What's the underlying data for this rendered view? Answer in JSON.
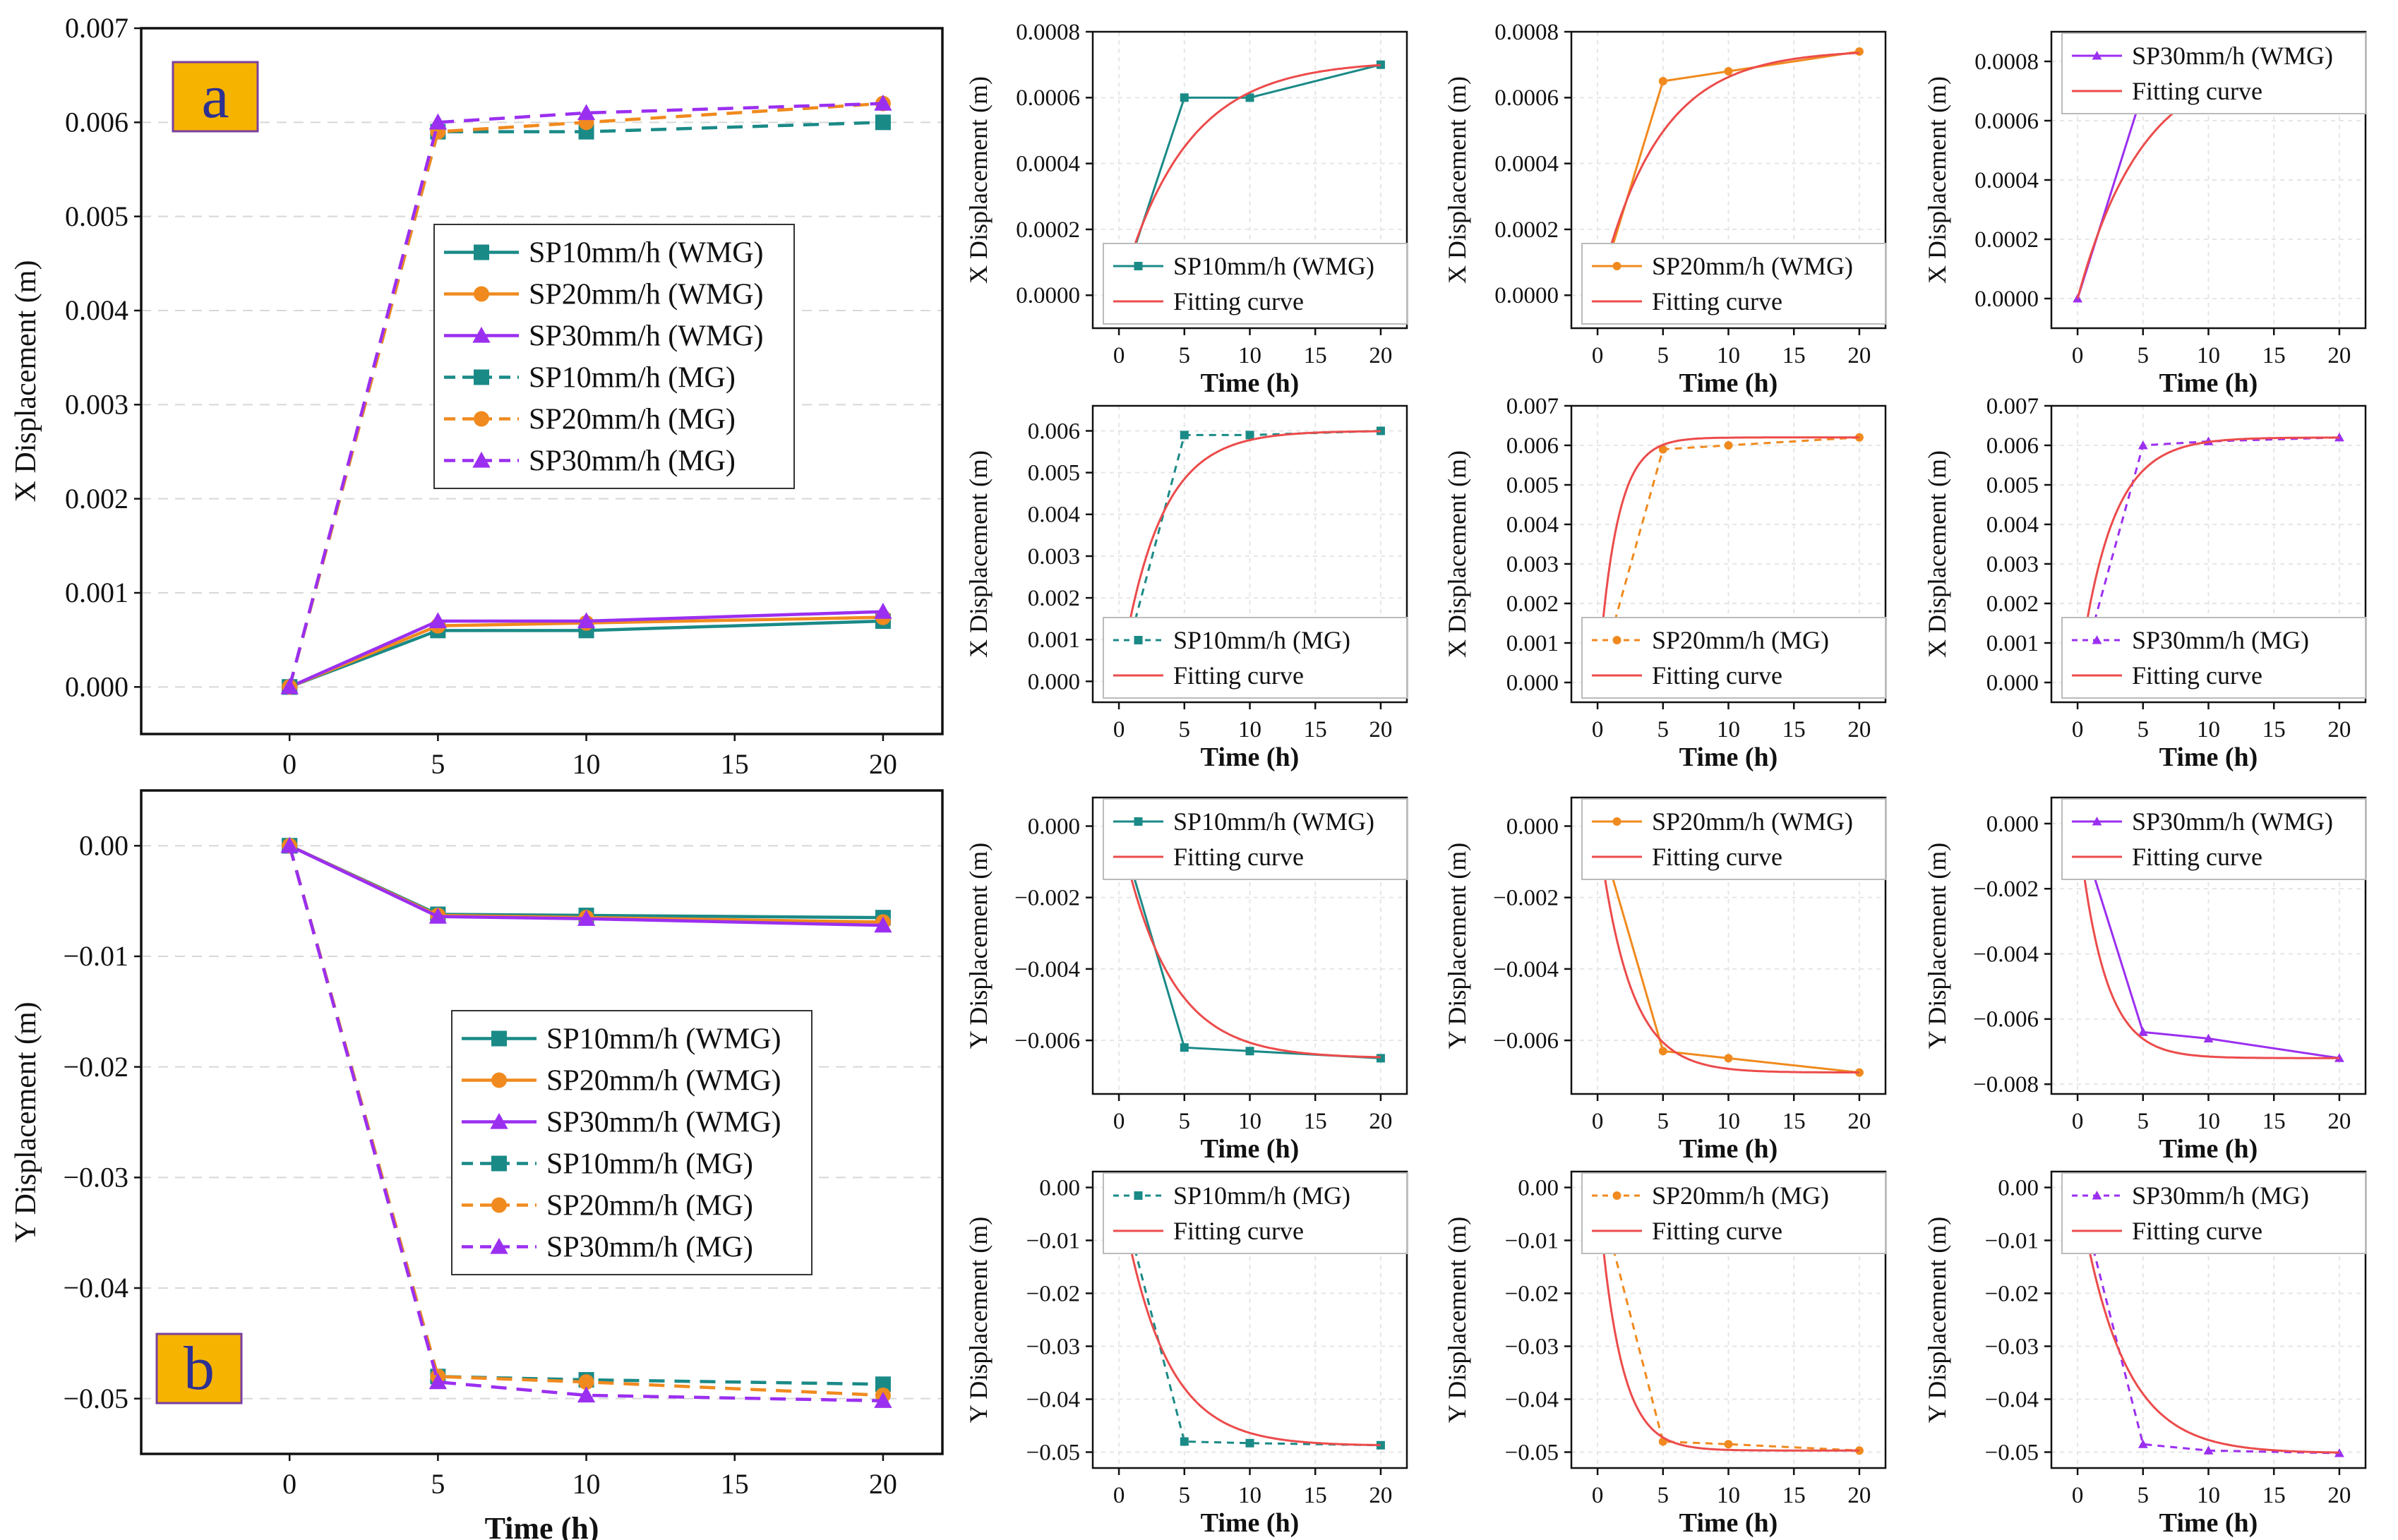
{
  "colors": {
    "teal": "#1a8a87",
    "orange": "#f08a1e",
    "purple": "#9b2ff0",
    "fit": "#ec4b4b",
    "label_box": "#f6b300",
    "label_text": "#2e3192"
  },
  "chart_data": [
    {
      "id": "a",
      "type": "line",
      "panel_label": "a",
      "xlabel": "Time (h)",
      "ylabel": "X Displacement (m)",
      "xlim": [
        -5,
        22
      ],
      "ylim": [
        -0.0005,
        0.007
      ],
      "xticks": [
        "0",
        "5",
        "10",
        "15",
        "20"
      ],
      "yticks": [
        "0.000",
        "0.001",
        "0.002",
        "0.003",
        "0.004",
        "0.005",
        "0.006",
        "0.007"
      ],
      "grid": true,
      "legend_position": "center",
      "x": [
        0,
        5,
        10,
        20
      ],
      "series": [
        {
          "name": "SP10mm/h (WMG)",
          "values": [
            0,
            0.0006,
            0.0006,
            0.0007
          ],
          "color": "teal",
          "marker": "square",
          "dash": false
        },
        {
          "name": "SP20mm/h (WMG)",
          "values": [
            0,
            0.00065,
            0.00068,
            0.00074
          ],
          "color": "orange",
          "marker": "circle",
          "dash": false
        },
        {
          "name": "SP30mm/h (WMG)",
          "values": [
            0,
            0.0007,
            0.0007,
            0.0008
          ],
          "color": "purple",
          "marker": "triangle",
          "dash": false
        },
        {
          "name": "SP10mm/h (MG)",
          "values": [
            0,
            0.0059,
            0.0059,
            0.006
          ],
          "color": "teal",
          "marker": "square",
          "dash": true
        },
        {
          "name": "SP20mm/h (MG)",
          "values": [
            0,
            0.0059,
            0.006,
            0.0062
          ],
          "color": "orange",
          "marker": "circle",
          "dash": true
        },
        {
          "name": "SP30mm/h (MG)",
          "values": [
            0,
            0.006,
            0.0061,
            0.0062
          ],
          "color": "purple",
          "marker": "triangle",
          "dash": true
        }
      ]
    },
    {
      "id": "b",
      "type": "line",
      "panel_label": "b",
      "xlabel": "Time (h)",
      "ylabel": "Y Displacement (m)",
      "xlim": [
        -5,
        22
      ],
      "ylim": [
        -0.055,
        0.005
      ],
      "xticks": [
        "0",
        "5",
        "10",
        "15",
        "20"
      ],
      "yticks": [
        "0.00",
        "−0.01",
        "−0.02",
        "−0.03",
        "−0.04",
        "−0.05"
      ],
      "grid": true,
      "legend_position": "center-right",
      "x": [
        0,
        5,
        10,
        20
      ],
      "series": [
        {
          "name": "SP10mm/h (WMG)",
          "values": [
            0,
            -0.0062,
            -0.0063,
            -0.0065
          ],
          "color": "teal",
          "marker": "square",
          "dash": false
        },
        {
          "name": "SP20mm/h (WMG)",
          "values": [
            0,
            -0.0063,
            -0.0065,
            -0.0069
          ],
          "color": "orange",
          "marker": "circle",
          "dash": false
        },
        {
          "name": "SP30mm/h (WMG)",
          "values": [
            0,
            -0.0064,
            -0.0066,
            -0.0072
          ],
          "color": "purple",
          "marker": "triangle",
          "dash": false
        },
        {
          "name": "SP10mm/h (MG)",
          "values": [
            0,
            -0.048,
            -0.0483,
            -0.0487
          ],
          "color": "teal",
          "marker": "square",
          "dash": true
        },
        {
          "name": "SP20mm/h (MG)",
          "values": [
            0,
            -0.048,
            -0.0485,
            -0.0497
          ],
          "color": "orange",
          "marker": "circle",
          "dash": true
        },
        {
          "name": "SP30mm/h (MG)",
          "values": [
            0,
            -0.0485,
            -0.0497,
            -0.0502
          ],
          "color": "purple",
          "marker": "triangle",
          "dash": true
        }
      ]
    },
    {
      "id": "x-wmg-10",
      "type": "line",
      "xlabel": "Time (h)",
      "ylabel": "X Displacement (m)",
      "xlim": [
        -2,
        22
      ],
      "ylim": [
        -0.0001,
        0.0008
      ],
      "xticks": [
        "0",
        "5",
        "10",
        "15",
        "20"
      ],
      "yticks": [
        "0.0000",
        "0.0002",
        "0.0004",
        "0.0006",
        "0.0008"
      ],
      "legend_position": "bottom-right",
      "x": [
        0,
        5,
        10,
        20
      ],
      "series": [
        {
          "name": "SP10mm/h (WMG)",
          "values": [
            0,
            0.0006,
            0.0006,
            0.0007
          ],
          "color": "teal",
          "marker": "square",
          "dash": false
        },
        {
          "name": "Fitting curve",
          "fit": {
            "a": 0.000712,
            "k": 0.2
          },
          "color": "fit"
        }
      ]
    },
    {
      "id": "x-wmg-20",
      "type": "line",
      "xlabel": "Time (h)",
      "ylabel": "X Displacement (m)",
      "xlim": [
        -2,
        22
      ],
      "ylim": [
        -0.0001,
        0.0008
      ],
      "xticks": [
        "0",
        "5",
        "10",
        "15",
        "20"
      ],
      "yticks": [
        "0.0000",
        "0.0002",
        "0.0004",
        "0.0006",
        "0.0008"
      ],
      "legend_position": "bottom-right",
      "x": [
        0,
        5,
        10,
        20
      ],
      "series": [
        {
          "name": "SP20mm/h (WMG)",
          "values": [
            0,
            0.00065,
            0.00068,
            0.00074
          ],
          "color": "orange",
          "marker": "circle",
          "dash": false
        },
        {
          "name": "Fitting curve",
          "fit": {
            "a": 0.000745,
            "k": 0.22
          },
          "color": "fit"
        }
      ]
    },
    {
      "id": "x-wmg-30",
      "type": "line",
      "xlabel": "Time (h)",
      "ylabel": "X Displacement (m)",
      "xlim": [
        -2,
        22
      ],
      "ylim": [
        -0.0001,
        0.0009
      ],
      "xticks": [
        "0",
        "5",
        "10",
        "15",
        "20"
      ],
      "yticks": [
        "0.0000",
        "0.0002",
        "0.0004",
        "0.0006",
        "0.0008"
      ],
      "legend_position": "top-right",
      "x": [
        0,
        5,
        10,
        20
      ],
      "series": [
        {
          "name": "SP30mm/h (WMG)",
          "values": [
            0,
            0.0007,
            0.0007,
            0.0008
          ],
          "color": "purple",
          "marker": "triangle",
          "dash": false
        },
        {
          "name": "Fitting curve",
          "fit": {
            "a": 0.000815,
            "k": 0.2
          },
          "color": "fit"
        }
      ]
    },
    {
      "id": "x-mg-10",
      "type": "line",
      "xlabel": "Time (h)",
      "ylabel": "X Displacement (m)",
      "xlim": [
        -2,
        22
      ],
      "ylim": [
        -0.0005,
        0.0066
      ],
      "xticks": [
        "0",
        "5",
        "10",
        "15",
        "20"
      ],
      "yticks": [
        "0.000",
        "0.001",
        "0.002",
        "0.003",
        "0.004",
        "0.005",
        "0.006"
      ],
      "legend_position": "bottom-right",
      "x": [
        0,
        5,
        10,
        20
      ],
      "series": [
        {
          "name": "SP10mm/h (MG)",
          "values": [
            0,
            0.0059,
            0.0059,
            0.006
          ],
          "color": "teal",
          "marker": "square",
          "dash": true
        },
        {
          "name": "Fitting curve",
          "fit": {
            "a": 0.006,
            "k": 0.33
          },
          "color": "fit"
        }
      ]
    },
    {
      "id": "x-mg-20",
      "type": "line",
      "xlabel": "Time (h)",
      "ylabel": "X Displacement (m)",
      "xlim": [
        -2,
        22
      ],
      "ylim": [
        -0.0005,
        0.007
      ],
      "xticks": [
        "0",
        "5",
        "10",
        "15",
        "20"
      ],
      "yticks": [
        "0.000",
        "0.001",
        "0.002",
        "0.003",
        "0.004",
        "0.005",
        "0.006",
        "0.007"
      ],
      "legend_position": "bottom-right",
      "x": [
        0,
        5,
        10,
        20
      ],
      "series": [
        {
          "name": "SP20mm/h (MG)",
          "values": [
            0,
            0.0059,
            0.006,
            0.0062
          ],
          "color": "orange",
          "marker": "circle",
          "dash": true
        },
        {
          "name": "Fitting curve",
          "fit": {
            "a": 0.0062,
            "k": 0.7
          },
          "color": "fit"
        }
      ]
    },
    {
      "id": "x-mg-30",
      "type": "line",
      "xlabel": "Time (h)",
      "ylabel": "X Displacement (m)",
      "xlim": [
        -2,
        22
      ],
      "ylim": [
        -0.0005,
        0.007
      ],
      "xticks": [
        "0",
        "5",
        "10",
        "15",
        "20"
      ],
      "yticks": [
        "0.000",
        "0.001",
        "0.002",
        "0.003",
        "0.004",
        "0.005",
        "0.006",
        "0.007"
      ],
      "legend_position": "bottom-right",
      "x": [
        0,
        5,
        10,
        20
      ],
      "series": [
        {
          "name": "SP30mm/h (MG)",
          "values": [
            0,
            0.006,
            0.0061,
            0.0062
          ],
          "color": "purple",
          "marker": "triangle",
          "dash": true
        },
        {
          "name": "Fitting curve",
          "fit": {
            "a": 0.0062,
            "k": 0.4
          },
          "color": "fit"
        }
      ]
    },
    {
      "id": "y-wmg-10",
      "type": "line",
      "xlabel": "Time (h)",
      "ylabel": "Y Displacement (m)",
      "xlim": [
        -2,
        22
      ],
      "ylim": [
        -0.0075,
        0.0008
      ],
      "xticks": [
        "0",
        "5",
        "10",
        "15",
        "20"
      ],
      "yticks": [
        "0.000",
        "−0.002",
        "−0.004",
        "−0.006"
      ],
      "legend_position": "top-right",
      "x": [
        0,
        5,
        10,
        20
      ],
      "series": [
        {
          "name": "SP10mm/h (WMG)",
          "values": [
            0,
            -0.0062,
            -0.0063,
            -0.0065
          ],
          "color": "teal",
          "marker": "square",
          "dash": false
        },
        {
          "name": "Fitting curve",
          "fit": {
            "a": -0.0065,
            "k": 0.27
          },
          "color": "fit"
        }
      ]
    },
    {
      "id": "y-wmg-20",
      "type": "line",
      "xlabel": "Time (h)",
      "ylabel": "Y Displacement (m)",
      "xlim": [
        -2,
        22
      ],
      "ylim": [
        -0.0075,
        0.0008
      ],
      "xticks": [
        "0",
        "5",
        "10",
        "15",
        "20"
      ],
      "yticks": [
        "0.000",
        "−0.002",
        "−0.004",
        "−0.006"
      ],
      "legend_position": "top-right",
      "x": [
        0,
        5,
        10,
        20
      ],
      "series": [
        {
          "name": "SP20mm/h (WMG)",
          "values": [
            0,
            -0.0063,
            -0.0065,
            -0.0069
          ],
          "color": "orange",
          "marker": "circle",
          "dash": false
        },
        {
          "name": "Fitting curve",
          "fit": {
            "a": -0.0069,
            "k": 0.42
          },
          "color": "fit"
        }
      ]
    },
    {
      "id": "y-wmg-30",
      "type": "line",
      "xlabel": "Time (h)",
      "ylabel": "Y Displacement (m)",
      "xlim": [
        -2,
        22
      ],
      "ylim": [
        -0.0083,
        0.0008
      ],
      "xticks": [
        "0",
        "5",
        "10",
        "15",
        "20"
      ],
      "yticks": [
        "0.000",
        "−0.002",
        "−0.004",
        "−0.006",
        "−0.008"
      ],
      "legend_position": "top-right",
      "x": [
        0,
        5,
        10,
        20
      ],
      "series": [
        {
          "name": "SP30mm/h (WMG)",
          "values": [
            0,
            -0.0064,
            -0.0066,
            -0.0072
          ],
          "color": "purple",
          "marker": "triangle",
          "dash": false
        },
        {
          "name": "Fitting curve",
          "fit": {
            "a": -0.0072,
            "k": 0.5
          },
          "color": "fit"
        }
      ]
    },
    {
      "id": "y-mg-10",
      "type": "line",
      "xlabel": "Time (h)",
      "ylabel": "Y Displacement (m)",
      "xlim": [
        -2,
        22
      ],
      "ylim": [
        -0.053,
        0.003
      ],
      "xticks": [
        "0",
        "5",
        "10",
        "15",
        "20"
      ],
      "yticks": [
        "0.00",
        "−0.01",
        "−0.02",
        "−0.03",
        "−0.04",
        "−0.05"
      ],
      "legend_position": "top-right",
      "x": [
        0,
        5,
        10,
        20
      ],
      "series": [
        {
          "name": "SP10mm/h (MG)",
          "values": [
            0,
            -0.048,
            -0.0483,
            -0.0487
          ],
          "color": "teal",
          "marker": "square",
          "dash": true
        },
        {
          "name": "Fitting curve",
          "fit": {
            "a": -0.0488,
            "k": 0.3
          },
          "color": "fit"
        }
      ]
    },
    {
      "id": "y-mg-20",
      "type": "line",
      "xlabel": "Time (h)",
      "ylabel": "Y Displacement (m)",
      "xlim": [
        -2,
        22
      ],
      "ylim": [
        -0.053,
        0.003
      ],
      "xticks": [
        "0",
        "5",
        "10",
        "15",
        "20"
      ],
      "yticks": [
        "0.00",
        "−0.01",
        "−0.02",
        "−0.03",
        "−0.04",
        "−0.05"
      ],
      "legend_position": "top-right",
      "x": [
        0,
        5,
        10,
        20
      ],
      "series": [
        {
          "name": "SP20mm/h (MG)",
          "values": [
            0,
            -0.048,
            -0.0485,
            -0.0497
          ],
          "color": "orange",
          "marker": "circle",
          "dash": true
        },
        {
          "name": "Fitting curve",
          "fit": {
            "a": -0.0497,
            "k": 0.6
          },
          "color": "fit"
        }
      ]
    },
    {
      "id": "y-mg-30",
      "type": "line",
      "xlabel": "Time (h)",
      "ylabel": "Y Displacement (m)",
      "xlim": [
        -2,
        22
      ],
      "ylim": [
        -0.053,
        0.003
      ],
      "xticks": [
        "0",
        "5",
        "10",
        "15",
        "20"
      ],
      "yticks": [
        "0.00",
        "−0.01",
        "−0.02",
        "−0.03",
        "−0.04",
        "−0.05"
      ],
      "legend_position": "top-right",
      "x": [
        0,
        5,
        10,
        20
      ],
      "series": [
        {
          "name": "SP30mm/h (MG)",
          "values": [
            0,
            -0.0485,
            -0.0497,
            -0.0502
          ],
          "color": "purple",
          "marker": "triangle",
          "dash": true
        },
        {
          "name": "Fitting curve",
          "fit": {
            "a": -0.0502,
            "k": 0.3
          },
          "color": "fit"
        }
      ]
    }
  ]
}
